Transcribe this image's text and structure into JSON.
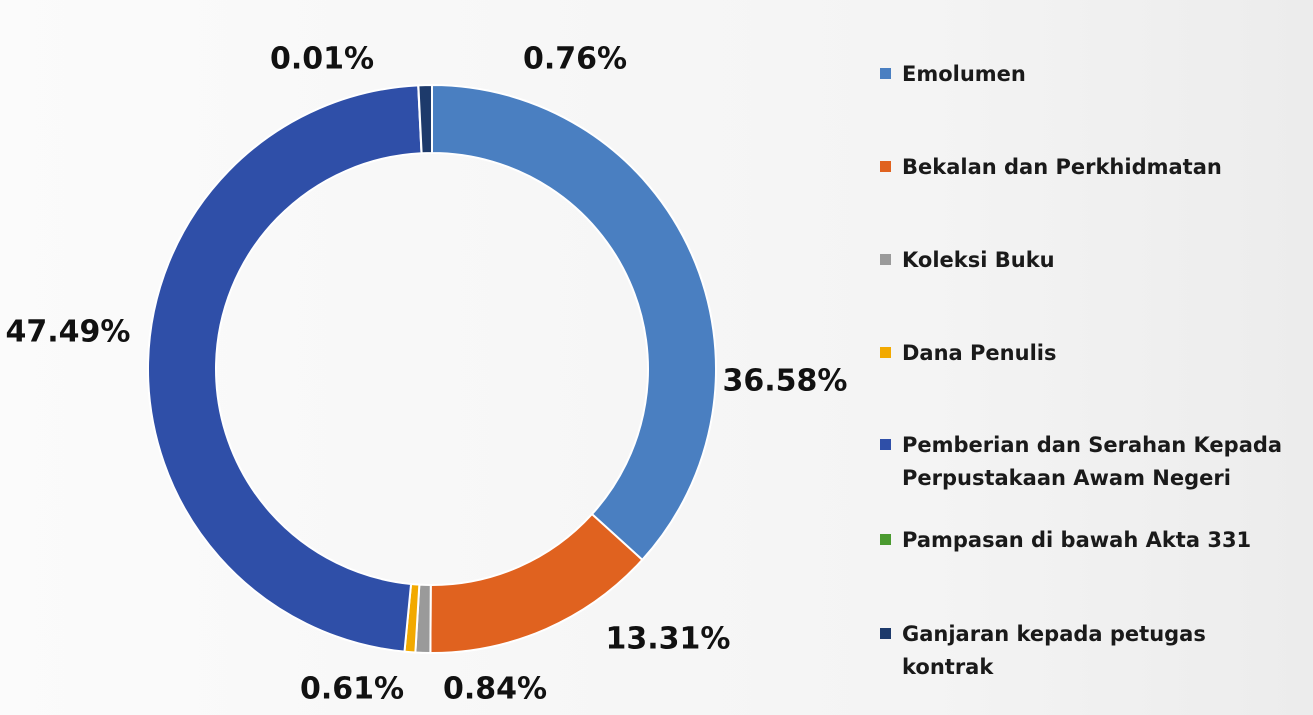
{
  "chart_data": {
    "type": "donut",
    "categories": [
      "Emolumen",
      "Bekalan dan Perkhidmatan",
      "Koleksi Buku",
      "Dana Penulis",
      "Pemberian dan Serahan Kepada Perpustakaan Awam Negeri",
      "Pampasan di bawah Akta 331",
      "Ganjaran kepada petugas kontrak"
    ],
    "values": [
      36.58,
      13.31,
      0.84,
      0.61,
      47.49,
      0.01,
      0.76
    ],
    "value_labels": [
      "36.58%",
      "13.31%",
      "0.84%",
      "0.61%",
      "47.49%",
      "0.01%",
      "0.76%"
    ],
    "colors": [
      "#4a7fc1",
      "#e0621f",
      "#9a9a9a",
      "#f2a900",
      "#2f4fa8",
      "#4a9a2f",
      "#1d3a6b"
    ],
    "legend": "right"
  }
}
